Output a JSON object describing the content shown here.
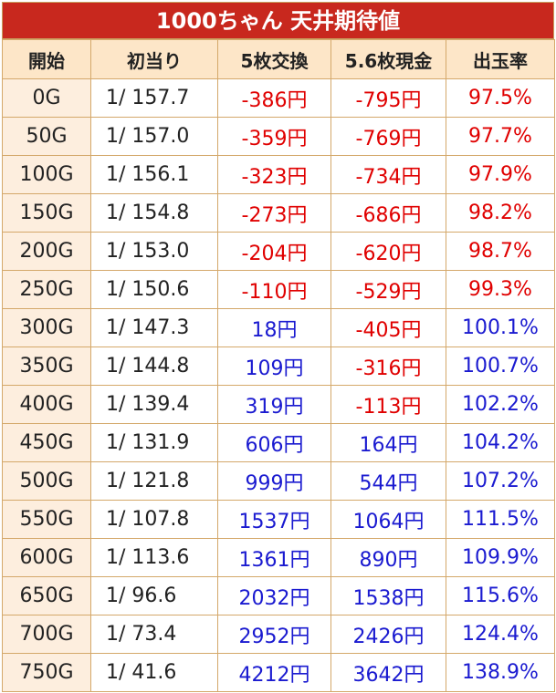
{
  "title": "1000ちゃん 天井期待値",
  "headers": [
    "開始",
    "初当り",
    "5枚交換",
    "5.6枚現金",
    "出玉率"
  ],
  "colors": {
    "title_bg": "#c8281e",
    "header_bg": "#fde6c8",
    "negative": "#e00000",
    "positive": "#1a1ad0",
    "border": "#d4a86a"
  },
  "rows": [
    {
      "start": "0G",
      "prob": "1/ 157.7",
      "ex5": "-386円",
      "cash56": "-795円",
      "rate": "97.5%"
    },
    {
      "start": "50G",
      "prob": "1/ 157.0",
      "ex5": "-359円",
      "cash56": "-769円",
      "rate": "97.7%"
    },
    {
      "start": "100G",
      "prob": "1/ 156.1",
      "ex5": "-323円",
      "cash56": "-734円",
      "rate": "97.9%"
    },
    {
      "start": "150G",
      "prob": "1/ 154.8",
      "ex5": "-273円",
      "cash56": "-686円",
      "rate": "98.2%"
    },
    {
      "start": "200G",
      "prob": "1/ 153.0",
      "ex5": "-204円",
      "cash56": "-620円",
      "rate": "98.7%"
    },
    {
      "start": "250G",
      "prob": "1/ 150.6",
      "ex5": "-110円",
      "cash56": "-529円",
      "rate": "99.3%"
    },
    {
      "start": "300G",
      "prob": "1/ 147.3",
      "ex5": "18円",
      "cash56": "-405円",
      "rate": "100.1%"
    },
    {
      "start": "350G",
      "prob": "1/ 144.8",
      "ex5": "109円",
      "cash56": "-316円",
      "rate": "100.7%"
    },
    {
      "start": "400G",
      "prob": "1/ 139.4",
      "ex5": "319円",
      "cash56": "-113円",
      "rate": "102.2%"
    },
    {
      "start": "450G",
      "prob": "1/ 131.9",
      "ex5": "606円",
      "cash56": "164円",
      "rate": "104.2%"
    },
    {
      "start": "500G",
      "prob": "1/ 121.8",
      "ex5": "999円",
      "cash56": "544円",
      "rate": "107.2%"
    },
    {
      "start": "550G",
      "prob": "1/ 107.8",
      "ex5": "1537円",
      "cash56": "1064円",
      "rate": "111.5%"
    },
    {
      "start": "600G",
      "prob": "1/ 113.6",
      "ex5": "1361円",
      "cash56": "890円",
      "rate": "109.9%"
    },
    {
      "start": "650G",
      "prob": "1/ 96.6",
      "ex5": "2032円",
      "cash56": "1538円",
      "rate": "115.6%"
    },
    {
      "start": "700G",
      "prob": "1/ 73.4",
      "ex5": "2952円",
      "cash56": "2426円",
      "rate": "124.4%"
    },
    {
      "start": "750G",
      "prob": "1/ 41.6",
      "ex5": "4212円",
      "cash56": "3642円",
      "rate": "138.9%"
    }
  ]
}
